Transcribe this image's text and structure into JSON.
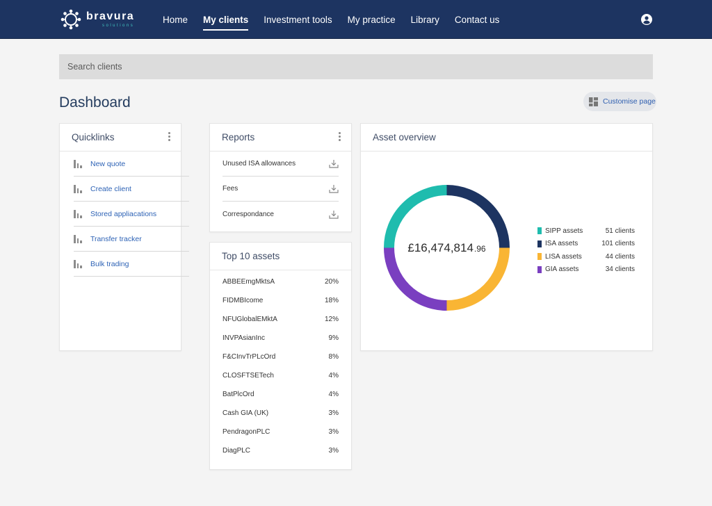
{
  "brand": {
    "name": "bravura",
    "tagline": "solutions"
  },
  "nav": {
    "items": [
      {
        "label": "Home",
        "active": false
      },
      {
        "label": "My clients",
        "active": true
      },
      {
        "label": "Investment tools",
        "active": false
      },
      {
        "label": "My practice",
        "active": false
      },
      {
        "label": "Library",
        "active": false
      },
      {
        "label": "Contact us",
        "active": false
      }
    ],
    "user_icon": "user-circle-icon"
  },
  "search": {
    "placeholder": "Search clients",
    "value": ""
  },
  "page": {
    "title": "Dashboard",
    "customise_label": "Customise page"
  },
  "quicklinks": {
    "title": "Quicklinks",
    "items": [
      "New quote",
      "Create client",
      "Stored appliacations",
      "Transfer tracker",
      "Bulk trading"
    ]
  },
  "reports": {
    "title": "Reports",
    "items": [
      "Unused ISA allowances",
      "Fees",
      "Correspondance"
    ]
  },
  "top_assets": {
    "title": "Top 10 assets",
    "rows": [
      {
        "name": "ABBEEmgMktsA",
        "pct": "20%"
      },
      {
        "name": "FIDMBIcome",
        "pct": "18%"
      },
      {
        "name": "NFUGlobalEMktA",
        "pct": "12%"
      },
      {
        "name": "INVPAsianInc",
        "pct": "9%"
      },
      {
        "name": "F&CInvTrPLcOrd",
        "pct": "8%"
      },
      {
        "name": "CLOSFTSETech",
        "pct": "4%"
      },
      {
        "name": "BatPlcOrd",
        "pct": "4%"
      },
      {
        "name": "Cash GIA (UK)",
        "pct": "3%"
      },
      {
        "name": "PendragonPLC",
        "pct": "3%"
      },
      {
        "name": "DiagPLC",
        "pct": "3%"
      }
    ]
  },
  "asset_overview": {
    "title": "Asset overview",
    "total_main": "£16,474,814",
    "total_decimal": ".96",
    "legend": [
      {
        "name": "SIPP assets",
        "count": "51 clients",
        "color": "#1fbcae"
      },
      {
        "name": "ISA assets",
        "count": "101 clients",
        "color": "#1d3461"
      },
      {
        "name": "LISA assets",
        "count": "44 clients",
        "color": "#f9b534"
      },
      {
        "name": "GIA assets",
        "count": "34 clients",
        "color": "#7a3fc0"
      }
    ],
    "donut_fractions": [
      0.25,
      0.25,
      0.25,
      0.25
    ]
  },
  "colors": {
    "nav_bg": "#1d3461",
    "link": "#2d62b5",
    "accent": "#40c4c0"
  }
}
